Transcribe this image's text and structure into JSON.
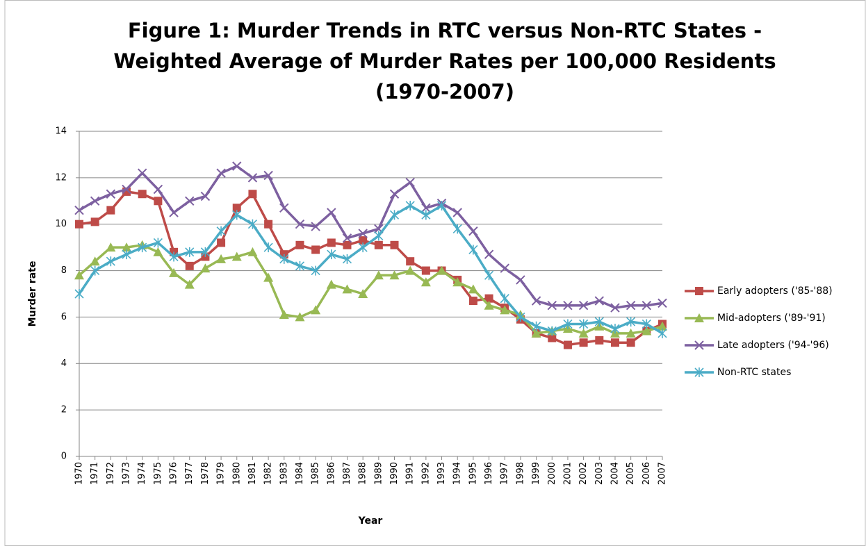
{
  "chart_data": {
    "type": "line",
    "title": [
      "Figure 1: Murder Trends in RTC versus Non-RTC States -",
      "Weighted Average of Murder Rates per 100,000 Residents",
      "(1970-2007)"
    ],
    "x_label": "Year",
    "y_label": "Murder rate",
    "categories": [
      "1970",
      "1971",
      "1972",
      "1973",
      "1974",
      "1975",
      "1976",
      "1977",
      "1978",
      "1979",
      "1980",
      "1981",
      "1982",
      "1983",
      "1984",
      "1985",
      "1986",
      "1987",
      "1988",
      "1989",
      "1990",
      "1991",
      "1992",
      "1993",
      "1994",
      "1995",
      "1996",
      "1997",
      "1998",
      "1999",
      "2000",
      "2001",
      "2002",
      "2003",
      "2004",
      "2005",
      "2006",
      "2007"
    ],
    "series": [
      {
        "name": "Early adopters ('85-'88)",
        "color": "#be4b48",
        "marker": "square",
        "values": [
          10.0,
          10.1,
          10.6,
          11.4,
          11.3,
          11.0,
          8.8,
          8.2,
          8.6,
          9.2,
          10.7,
          11.3,
          10.0,
          8.7,
          9.1,
          8.9,
          9.2,
          9.1,
          9.3,
          9.1,
          9.1,
          8.4,
          8.0,
          8.0,
          7.6,
          6.7,
          6.8,
          6.4,
          5.9,
          5.3,
          5.1,
          4.8,
          4.9,
          5.0,
          4.9,
          4.9,
          5.4,
          5.7
        ]
      },
      {
        "name": "Mid-adopters ('89-'91)",
        "color": "#98b954",
        "marker": "triangle",
        "values": [
          7.8,
          8.4,
          9.0,
          9.0,
          9.1,
          8.8,
          7.9,
          7.4,
          8.1,
          8.5,
          8.6,
          8.8,
          7.7,
          6.1,
          6.0,
          6.3,
          7.4,
          7.2,
          7.0,
          7.8,
          7.8,
          8.0,
          7.5,
          8.0,
          7.5,
          7.2,
          6.5,
          6.3,
          6.1,
          5.3,
          5.4,
          5.5,
          5.3,
          5.6,
          5.3,
          5.3,
          5.4,
          5.6
        ]
      },
      {
        "name": "Late adopters ('94-'96)",
        "color": "#7d60a0",
        "marker": "x",
        "values": [
          10.6,
          11.0,
          11.3,
          11.5,
          12.2,
          11.5,
          10.5,
          11.0,
          11.2,
          12.2,
          12.5,
          12.0,
          12.1,
          10.7,
          10.0,
          9.9,
          10.5,
          9.4,
          9.6,
          9.8,
          11.3,
          11.8,
          10.7,
          10.9,
          10.5,
          9.7,
          8.7,
          8.1,
          7.6,
          6.7,
          6.5,
          6.5,
          6.5,
          6.7,
          6.4,
          6.5,
          6.5,
          6.6
        ]
      },
      {
        "name": "Non-RTC states",
        "color": "#4bacc6",
        "marker": "star",
        "values": [
          7.0,
          8.0,
          8.4,
          8.7,
          9.0,
          9.2,
          8.6,
          8.8,
          8.8,
          9.7,
          10.4,
          10.0,
          9.0,
          8.5,
          8.2,
          8.0,
          8.7,
          8.5,
          9.0,
          9.5,
          10.4,
          10.8,
          10.4,
          10.8,
          9.8,
          8.9,
          7.8,
          6.8,
          6.0,
          5.6,
          5.4,
          5.7,
          5.7,
          5.8,
          5.5,
          5.8,
          5.7,
          5.3
        ]
      }
    ],
    "ylim": [
      0,
      14
    ],
    "yticks": [
      0,
      2,
      4,
      6,
      8,
      10,
      12,
      14
    ],
    "grid": true,
    "legend": "right"
  }
}
